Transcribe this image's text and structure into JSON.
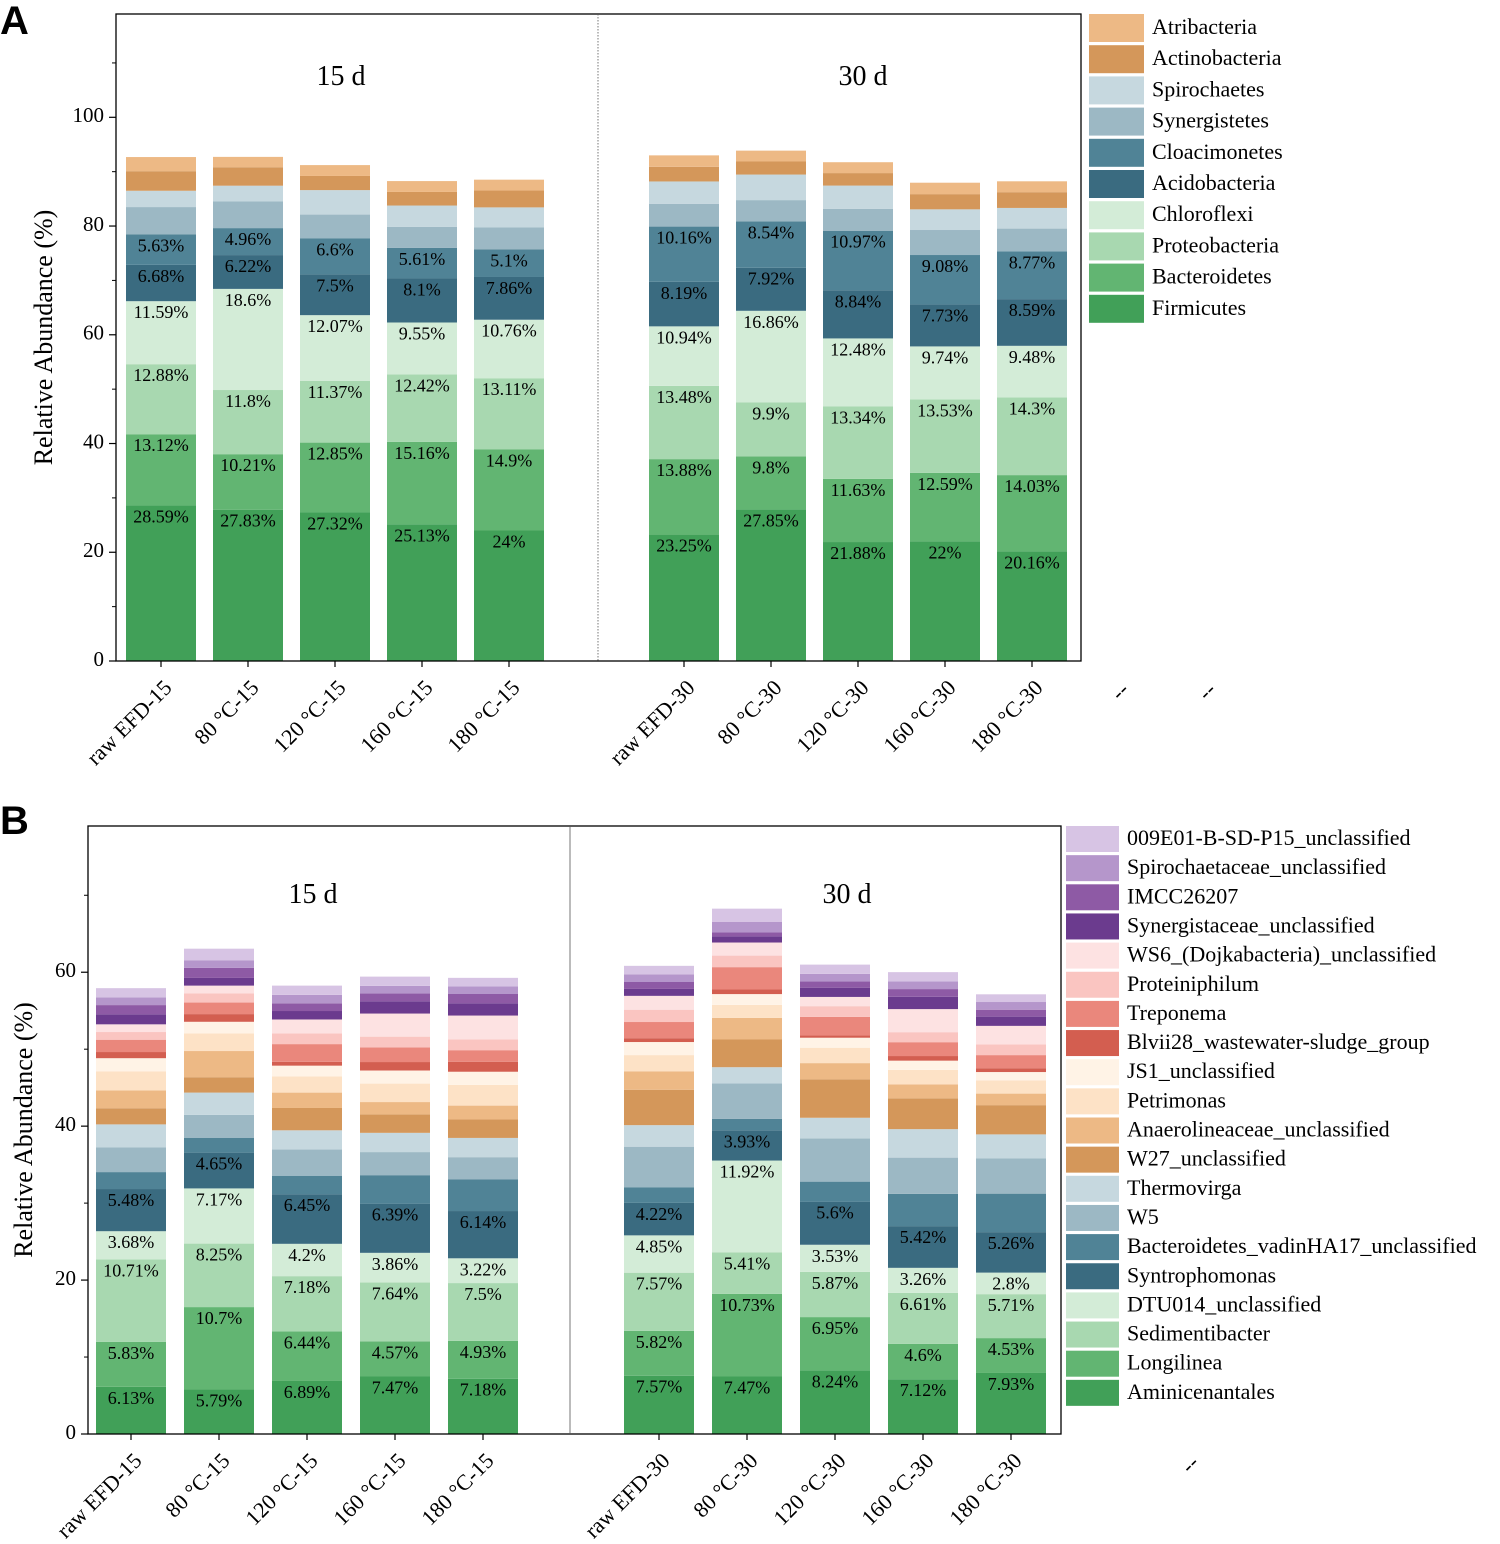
{
  "panels": [
    {
      "letter": "A",
      "ylabel": "Relative Abundance (%)",
      "ylim": [
        0,
        119
      ],
      "yticks": [
        0,
        20,
        40,
        60,
        80,
        100
      ],
      "group_labels": [
        "15 d",
        "30 d"
      ],
      "categories": [
        "raw EFD-15",
        "80 °C-15",
        "120 °C-15",
        "160 °C-15",
        "180 °C-15",
        "raw EFD-30",
        "80 °C-30",
        "120 °C-30",
        "160 °C-30",
        "180 °C-30"
      ],
      "extra_ticks": [
        "--",
        "--"
      ]
    },
    {
      "letter": "B",
      "ylabel": "Relative Abundance (%)",
      "ylim": [
        0,
        79
      ],
      "yticks": [
        0,
        20,
        40,
        60
      ],
      "group_labels": [
        "15 d",
        "30 d"
      ],
      "categories": [
        "raw EFD-15",
        "80 °C-15",
        "120 °C-15",
        "160 °C-15",
        "180 °C-15",
        "raw EFD-30",
        "80 °C-30",
        "120 °C-30",
        "160 °C-30",
        "180 °C-30"
      ],
      "extra_ticks": [
        "--"
      ]
    }
  ],
  "chart_data": [
    {
      "type": "bar",
      "stacked": true,
      "title": "A",
      "ylabel": "Relative Abundance (%)",
      "ylim": [
        0,
        119
      ],
      "categories": [
        "raw EFD-15",
        "80 °C-15",
        "120 °C-15",
        "160 °C-15",
        "180 °C-15",
        "raw EFD-30",
        "80 °C-30",
        "120 °C-30",
        "160 °C-30",
        "180 °C-30"
      ],
      "legend_position": "right",
      "series": [
        {
          "name": "Firmicutes",
          "color": "#41a058",
          "values": [
            28.59,
            27.83,
            27.32,
            25.13,
            24,
            23.25,
            27.85,
            21.88,
            22,
            20.16
          ],
          "labels": [
            "28.59%",
            "27.83%",
            "27.32%",
            "25.13%",
            "24%",
            "23.25%",
            "27.85%",
            "21.88%",
            "22%",
            "20.16%"
          ]
        },
        {
          "name": "Bacteroidetes",
          "color": "#62b572",
          "values": [
            13.12,
            10.21,
            12.85,
            15.16,
            14.9,
            13.88,
            9.8,
            11.63,
            12.59,
            14.03
          ],
          "labels": [
            "13.12%",
            "10.21%",
            "12.85%",
            "15.16%",
            "14.9%",
            "13.88%",
            "9.8%",
            "11.63%",
            "12.59%",
            "14.03%"
          ]
        },
        {
          "name": "Proteobacteria",
          "color": "#a8d8b0",
          "values": [
            12.88,
            11.8,
            11.37,
            12.42,
            13.11,
            13.48,
            9.9,
            13.34,
            13.53,
            14.3
          ],
          "labels": [
            "12.88%",
            "11.8%",
            "11.37%",
            "12.42%",
            "13.11%",
            "13.48%",
            "9.9%",
            "13.34%",
            "13.53%",
            "14.3%"
          ]
        },
        {
          "name": "Chloroflexi",
          "color": "#d3ecd7",
          "values": [
            11.59,
            18.6,
            12.07,
            9.55,
            10.76,
            10.94,
            16.86,
            12.48,
            9.74,
            9.48
          ],
          "labels": [
            "11.59%",
            "18.6%",
            "12.07%",
            "9.55%",
            "10.76%",
            "10.94%",
            "16.86%",
            "12.48%",
            "9.74%",
            "9.48%"
          ]
        },
        {
          "name": "Acidobacteria",
          "color": "#3a6b80",
          "values": [
            6.68,
            6.22,
            7.5,
            8.1,
            7.86,
            8.19,
            7.92,
            8.84,
            7.73,
            8.59
          ],
          "labels": [
            "6.68%",
            "6.22%",
            "7.5%",
            "8.1%",
            "7.86%",
            "8.19%",
            "7.92%",
            "8.84%",
            "7.73%",
            "8.59%"
          ]
        },
        {
          "name": "Cloacimonetes",
          "color": "#508396",
          "values": [
            5.63,
            4.96,
            6.6,
            5.61,
            5.1,
            10.16,
            8.54,
            10.97,
            9.08,
            8.77
          ],
          "labels": [
            "5.63%",
            "4.96%",
            "6.6%",
            "5.61%",
            "5.1%",
            "10.16%",
            "8.54%",
            "10.97%",
            "9.08%",
            "8.77%"
          ]
        },
        {
          "name": "Synergistetes",
          "color": "#9cb8c4",
          "values": [
            5,
            4.9,
            4.4,
            3.9,
            4.0,
            4.2,
            3.9,
            4.0,
            4.6,
            4.2
          ],
          "labels": []
        },
        {
          "name": "Spirochaetes",
          "color": "#c6d8df",
          "values": [
            3.0,
            2.9,
            4.5,
            3.9,
            3.7,
            4.1,
            4.7,
            4.3,
            3.8,
            3.8
          ],
          "labels": []
        },
        {
          "name": "Actinobacteria",
          "color": "#d4975a",
          "values": [
            3.6,
            3.4,
            2.6,
            2.5,
            3.1,
            2.7,
            2.4,
            2.3,
            2.8,
            2.9
          ],
          "labels": []
        },
        {
          "name": "Atribacteria",
          "color": "#edb985",
          "values": [
            2.6,
            1.9,
            2.0,
            2.0,
            2.0,
            2.1,
            2.0,
            2.0,
            2.1,
            2.0
          ],
          "labels": []
        }
      ]
    },
    {
      "type": "bar",
      "stacked": true,
      "title": "B",
      "ylabel": "Relative Abundance (%)",
      "ylim": [
        0,
        79
      ],
      "categories": [
        "raw EFD-15",
        "80 °C-15",
        "120 °C-15",
        "160 °C-15",
        "180 °C-15",
        "raw EFD-30",
        "80 °C-30",
        "120 °C-30",
        "160 °C-30",
        "180 °C-30"
      ],
      "legend_position": "right",
      "series": [
        {
          "name": "Aminicenantales",
          "color": "#41a058",
          "values": [
            6.13,
            5.79,
            6.89,
            7.47,
            7.18,
            7.57,
            7.47,
            8.24,
            7.12,
            7.93
          ],
          "labels": [
            "6.13%",
            "5.79%",
            "6.89%",
            "7.47%",
            "7.18%",
            "7.57%",
            "7.47%",
            "8.24%",
            "7.12%",
            "7.93%"
          ]
        },
        {
          "name": "Longilinea",
          "color": "#62b572",
          "values": [
            5.83,
            10.7,
            6.44,
            4.57,
            4.93,
            5.82,
            10.73,
            6.95,
            4.6,
            4.53
          ],
          "labels": [
            "5.83%",
            "10.7%",
            "6.44%",
            "4.57%",
            "4.93%",
            "5.82%",
            "10.73%",
            "6.95%",
            "4.6%",
            "4.53%"
          ]
        },
        {
          "name": "Sedimentibacter",
          "color": "#a8d8b0",
          "values": [
            10.71,
            8.25,
            7.18,
            7.64,
            7.5,
            7.57,
            5.41,
            5.87,
            6.61,
            5.71
          ],
          "labels": [
            "10.71%",
            "8.25%",
            "7.18%",
            "7.64%",
            "7.5%",
            "7.57%",
            "5.41%",
            "5.87%",
            "6.61%",
            "5.71%"
          ]
        },
        {
          "name": "DTU014_unclassified",
          "color": "#d3ecd7",
          "values": [
            3.68,
            7.17,
            4.2,
            3.86,
            3.22,
            4.85,
            11.92,
            3.53,
            3.26,
            2.8
          ],
          "labels": [
            "3.68%",
            "7.17%",
            "4.2%",
            "3.86%",
            "3.22%",
            "4.85%",
            "11.92%",
            "3.53%",
            "3.26%",
            "2.8%"
          ]
        },
        {
          "name": "Syntrophomonas",
          "color": "#3a6b80",
          "values": [
            5.48,
            4.65,
            6.45,
            6.39,
            6.14,
            4.22,
            3.93,
            5.6,
            5.42,
            5.26
          ],
          "labels": [
            "5.48%",
            "4.65%",
            "6.45%",
            "6.39%",
            "6.14%",
            "4.22%",
            "3.93%",
            "5.6%",
            "5.42%",
            "5.26%"
          ]
        },
        {
          "name": "Bacteroidetes_vadinHA17_unclassified",
          "color": "#508396",
          "values": [
            2.2,
            1.9,
            2.4,
            3.7,
            4.1,
            2.0,
            1.5,
            2.6,
            4.2,
            5.0
          ],
          "labels": []
        },
        {
          "name": "W5",
          "color": "#9cb8c4",
          "values": [
            3.2,
            3.0,
            3.4,
            3.0,
            2.9,
            5.3,
            4.6,
            5.6,
            4.7,
            4.6
          ],
          "labels": []
        },
        {
          "name": "Thermovirga",
          "color": "#c6d8df",
          "values": [
            3.0,
            2.9,
            2.5,
            2.5,
            2.5,
            2.8,
            2.1,
            2.7,
            3.7,
            3.1
          ],
          "labels": []
        },
        {
          "name": "W27_unclassified",
          "color": "#d4975a",
          "values": [
            2.1,
            2.0,
            2.9,
            2.4,
            2.4,
            4.6,
            3.6,
            5.0,
            4.0,
            3.8
          ],
          "labels": []
        },
        {
          "name": "Anaerolineaceae_unclassified",
          "color": "#edb985",
          "values": [
            2.3,
            3.4,
            2.0,
            1.6,
            1.8,
            2.4,
            2.8,
            2.1,
            1.8,
            1.5
          ],
          "labels": []
        },
        {
          "name": "Petrimonas",
          "color": "#fde2c6",
          "values": [
            2.5,
            2.3,
            2.1,
            2.4,
            2.7,
            2.1,
            1.7,
            2.0,
            1.9,
            1.7
          ],
          "labels": []
        },
        {
          "name": "JS1_unclassified",
          "color": "#fff3e6",
          "values": [
            1.7,
            1.5,
            1.4,
            1.7,
            1.7,
            1.7,
            1.4,
            1.3,
            1.2,
            1.1
          ],
          "labels": []
        },
        {
          "name": "Blvii28_wastewater-sludge_group",
          "color": "#d35e50",
          "values": [
            0.8,
            1.0,
            0.5,
            1.1,
            1.3,
            0.5,
            0.6,
            0.3,
            0.6,
            0.5
          ],
          "labels": []
        },
        {
          "name": "Treponema",
          "color": "#ea877c",
          "values": [
            1.6,
            1.5,
            2.3,
            1.9,
            1.5,
            2.1,
            2.9,
            2.4,
            1.8,
            1.7
          ],
          "labels": []
        },
        {
          "name": "Proteiniphilum",
          "color": "#fac5c1",
          "values": [
            1.0,
            1.2,
            1.4,
            1.4,
            1.4,
            1.6,
            1.5,
            1.4,
            1.3,
            1.4
          ],
          "labels": []
        },
        {
          "name": "WS6_(Dojkabacteria)_unclassified",
          "color": "#fde2e2",
          "values": [
            1.0,
            1.0,
            1.8,
            3.0,
            3.1,
            1.8,
            1.7,
            1.2,
            3.0,
            2.4
          ],
          "labels": []
        },
        {
          "name": "Synergistaceae_unclassified",
          "color": "#6b3b8e",
          "values": [
            1.3,
            1.0,
            1.1,
            1.6,
            1.6,
            0.9,
            0.8,
            1.2,
            1.6,
            1.2
          ],
          "labels": []
        },
        {
          "name": "IMCC26207",
          "color": "#8e5aa5",
          "values": [
            1.2,
            1.3,
            1.0,
            1.0,
            1.2,
            0.9,
            0.5,
            0.8,
            1.0,
            0.9
          ],
          "labels": []
        },
        {
          "name": "Spirochaetaceae_unclassified",
          "color": "#b596cb",
          "values": [
            1.0,
            1.0,
            1.1,
            1.0,
            1.0,
            1.0,
            1.4,
            1.0,
            1.0,
            1.0
          ],
          "labels": []
        },
        {
          "name": "009E01-B-SD-P15_unclassified",
          "color": "#d7c4e4",
          "values": [
            1.2,
            1.5,
            1.2,
            1.2,
            1.1,
            1.1,
            1.7,
            1.2,
            1.2,
            1.0
          ],
          "labels": []
        }
      ]
    }
  ]
}
